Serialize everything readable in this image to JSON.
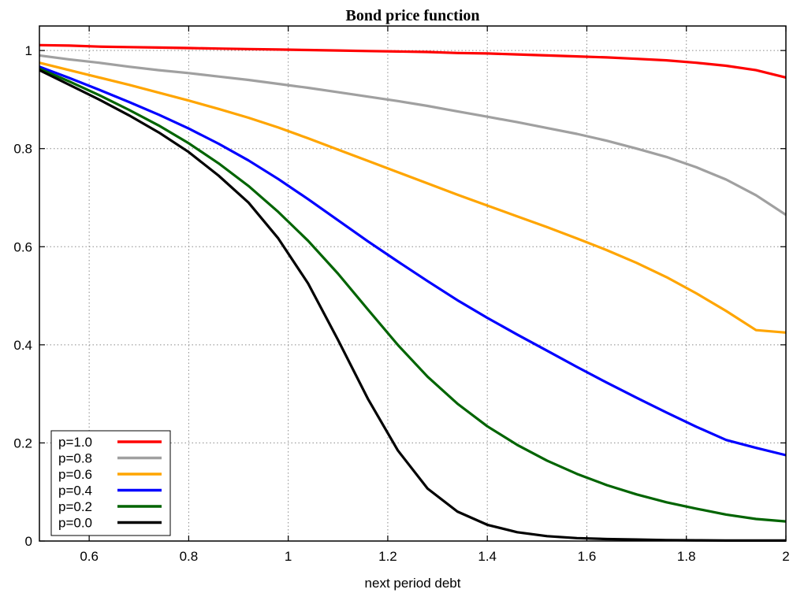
{
  "chart_data": {
    "type": "line",
    "title": "Bond price function",
    "xlabel": "next period debt",
    "ylabel": "",
    "xlim": [
      0.5,
      2.0
    ],
    "ylim": [
      0,
      1.05
    ],
    "xticks": [
      0.6,
      0.8,
      1.0,
      1.2,
      1.4,
      1.6,
      1.8,
      2.0
    ],
    "xtick_labels": [
      "0.6",
      "0.8",
      "1",
      "1.2",
      "1.4",
      "1.6",
      "1.8",
      "2"
    ],
    "yticks": [
      0,
      0.2,
      0.4,
      0.6,
      0.8,
      1.0
    ],
    "ytick_labels": [
      "0",
      "0.2",
      "0.4",
      "0.6",
      "0.8",
      "1"
    ],
    "grid": true,
    "legend_position": "bottom-left",
    "x": [
      0.5,
      0.56,
      0.62,
      0.68,
      0.74,
      0.8,
      0.86,
      0.92,
      0.98,
      1.04,
      1.1,
      1.16,
      1.22,
      1.28,
      1.34,
      1.4,
      1.46,
      1.52,
      1.58,
      1.64,
      1.7,
      1.76,
      1.82,
      1.88,
      1.94,
      2.0
    ],
    "series": [
      {
        "name": "p=1.0",
        "color": "#ff0000",
        "values": [
          1.011,
          1.01,
          1.008,
          1.007,
          1.006,
          1.005,
          1.004,
          1.003,
          1.002,
          1.001,
          1.0,
          0.999,
          0.998,
          0.997,
          0.995,
          0.994,
          0.992,
          0.99,
          0.988,
          0.986,
          0.983,
          0.98,
          0.975,
          0.969,
          0.96,
          0.945
        ]
      },
      {
        "name": "p=0.8",
        "color": "#a0a0a0",
        "values": [
          0.99,
          0.982,
          0.975,
          0.967,
          0.96,
          0.954,
          0.947,
          0.94,
          0.932,
          0.924,
          0.915,
          0.906,
          0.897,
          0.887,
          0.876,
          0.865,
          0.854,
          0.842,
          0.83,
          0.816,
          0.8,
          0.783,
          0.762,
          0.737,
          0.705,
          0.665
        ]
      },
      {
        "name": "p=0.6",
        "color": "#ffa500",
        "values": [
          0.975,
          0.96,
          0.945,
          0.93,
          0.914,
          0.898,
          0.881,
          0.863,
          0.843,
          0.821,
          0.798,
          0.775,
          0.752,
          0.729,
          0.706,
          0.684,
          0.662,
          0.64,
          0.617,
          0.593,
          0.567,
          0.538,
          0.505,
          0.469,
          0.43,
          0.425
        ]
      },
      {
        "name": "p=0.4",
        "color": "#0000ff",
        "values": [
          0.967,
          0.944,
          0.92,
          0.895,
          0.869,
          0.841,
          0.81,
          0.776,
          0.738,
          0.697,
          0.654,
          0.611,
          0.57,
          0.53,
          0.491,
          0.455,
          0.421,
          0.388,
          0.355,
          0.323,
          0.292,
          0.262,
          0.233,
          0.206,
          0.19,
          0.175
        ]
      },
      {
        "name": "p=0.2",
        "color": "#006400",
        "values": [
          0.963,
          0.937,
          0.909,
          0.879,
          0.847,
          0.811,
          0.77,
          0.724,
          0.671,
          0.612,
          0.545,
          0.472,
          0.4,
          0.335,
          0.28,
          0.234,
          0.196,
          0.164,
          0.137,
          0.114,
          0.095,
          0.079,
          0.066,
          0.054,
          0.045,
          0.04
        ]
      },
      {
        "name": "p=0.0",
        "color": "#000000",
        "values": [
          0.96,
          0.93,
          0.9,
          0.868,
          0.833,
          0.793,
          0.745,
          0.69,
          0.617,
          0.525,
          0.41,
          0.29,
          0.185,
          0.107,
          0.06,
          0.033,
          0.018,
          0.01,
          0.006,
          0.004,
          0.003,
          0.002,
          0.0015,
          0.001,
          0.001,
          0.001
        ]
      }
    ]
  }
}
